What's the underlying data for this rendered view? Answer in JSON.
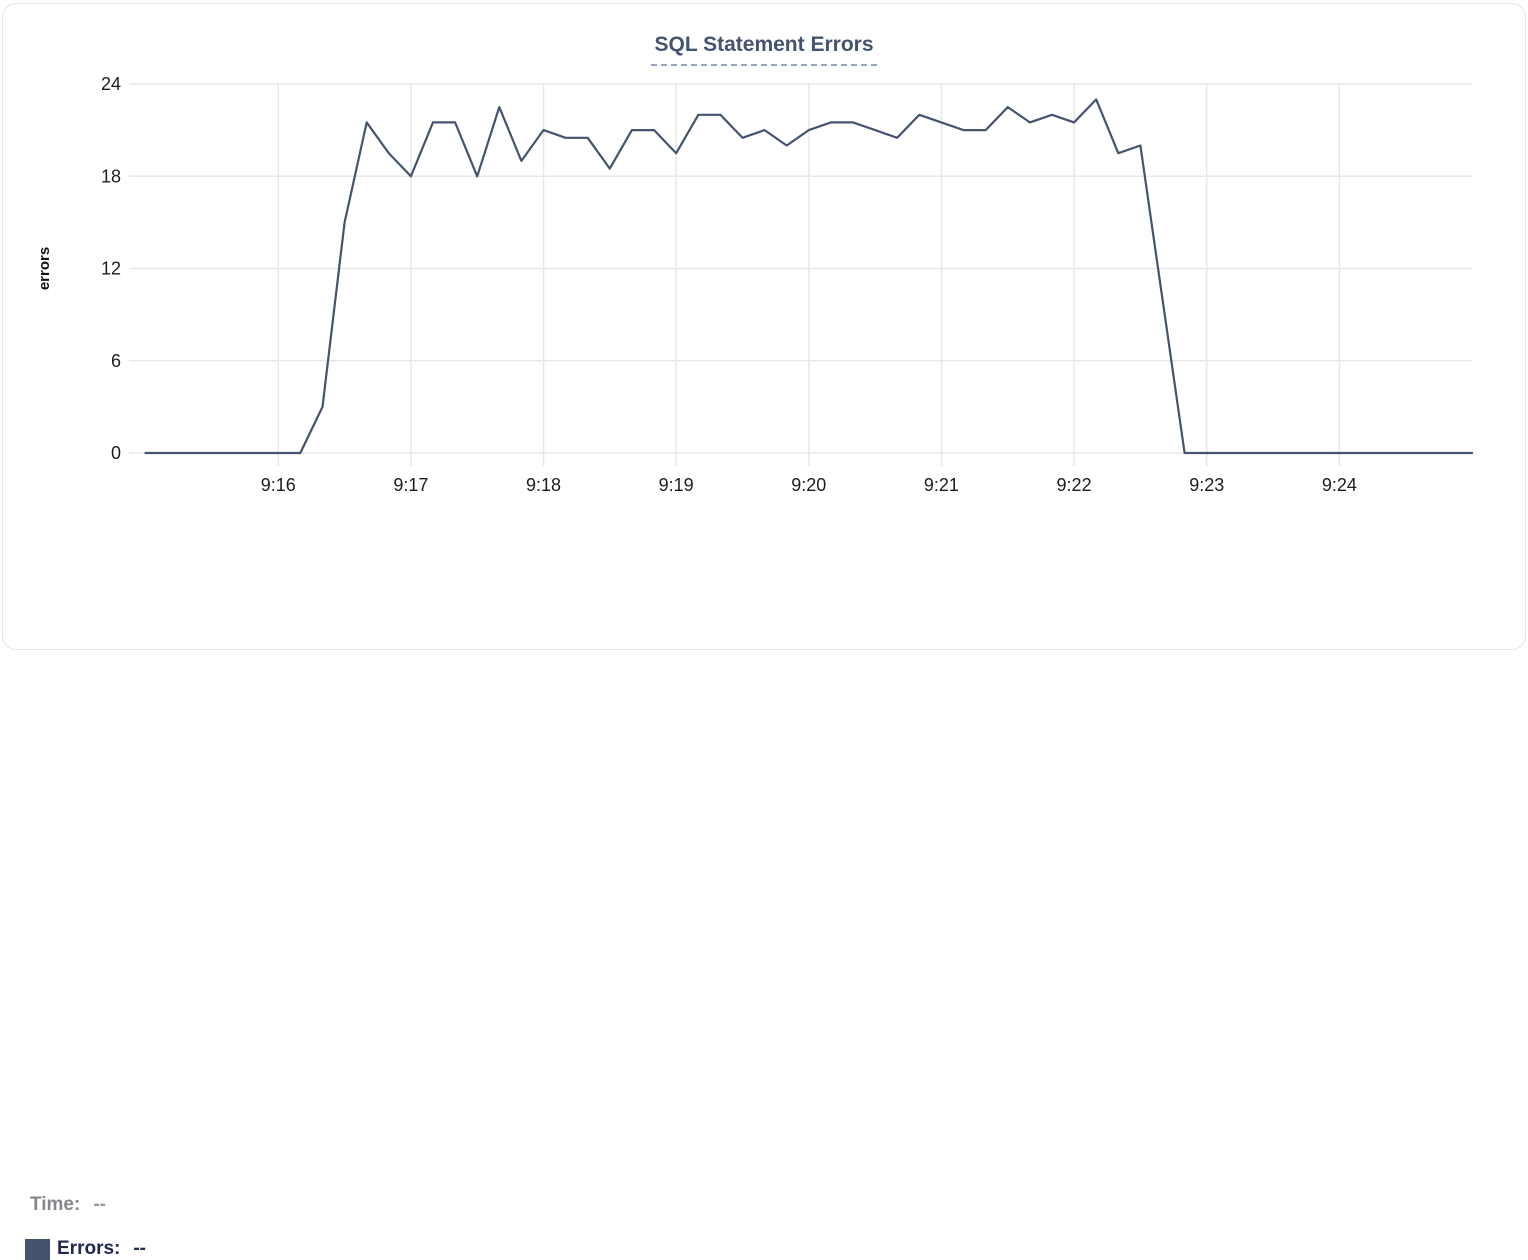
{
  "chart": {
    "title": "SQL Statement Errors"
  },
  "tooltip": {
    "time_label": "Time:",
    "time_value": "--",
    "errors_label": "Errors:",
    "errors_value": "--"
  },
  "colors": {
    "series": "#44536E",
    "title": "#44546F",
    "title_underline": "#98A4BA",
    "grid": "#E8E8E8",
    "tick_text": "#1D1D1D",
    "time_label": "#85878C",
    "time_value": "#97989D",
    "errors_label": "#20294E"
  },
  "chart_data": {
    "type": "line",
    "title": "SQL Statement Errors",
    "xlabel": "",
    "ylabel": "errors",
    "grid": true,
    "legend_position": "bottom-left",
    "x_ticks": [
      "9:16",
      "9:17",
      "9:18",
      "9:19",
      "9:20",
      "9:21",
      "9:22",
      "9:23",
      "9:24"
    ],
    "y_ticks": [
      0,
      6,
      12,
      18,
      24
    ],
    "ylim": [
      0,
      24
    ],
    "x_range": [
      "9:15:00",
      "9:25:00"
    ],
    "x_step_seconds": 10,
    "series": [
      {
        "name": "Errors",
        "color": "#44536E",
        "values": [
          0,
          0,
          0,
          0,
          0,
          0,
          0,
          0,
          3,
          15,
          21.5,
          19.5,
          18,
          21.5,
          21.5,
          18,
          22.5,
          19,
          21,
          20.5,
          20.5,
          18.5,
          21,
          21,
          19.5,
          22,
          22,
          20.5,
          21,
          20,
          21,
          21.5,
          21.5,
          21,
          20.5,
          22,
          21.5,
          21,
          21,
          22.5,
          21.5,
          22,
          21.5,
          23,
          19.5,
          20,
          10,
          0,
          0,
          0,
          0,
          0,
          0,
          0,
          0,
          0,
          0,
          0,
          0,
          0,
          0
        ]
      }
    ]
  }
}
